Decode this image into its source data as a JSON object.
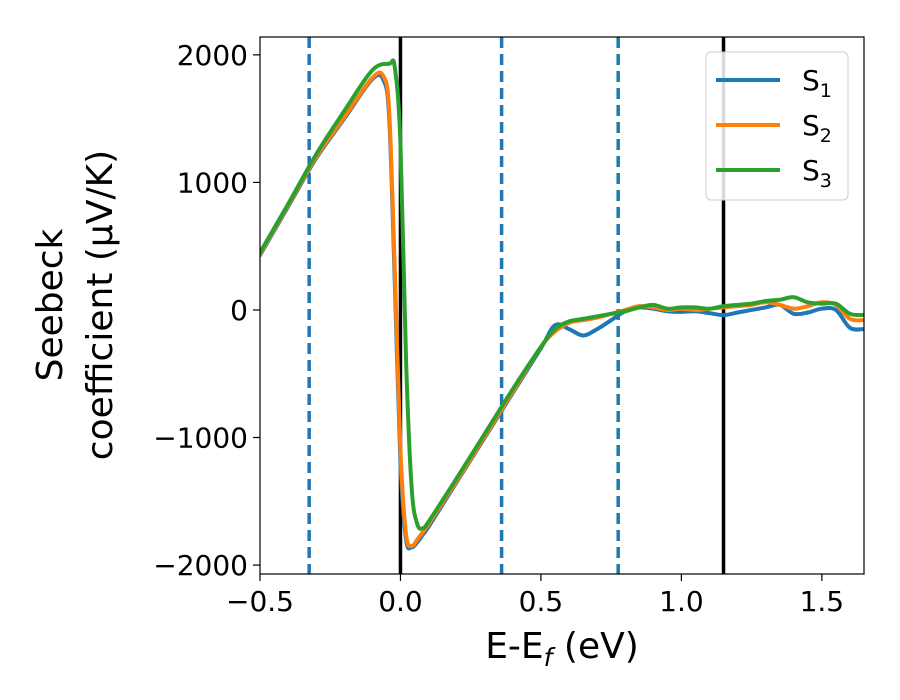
{
  "chart_data": {
    "type": "line",
    "title": "",
    "xlabel_main": "E-E",
    "xlabel_sub": "f",
    "xlabel_unit": " (eV)",
    "ylabel_line1": "Seebeck",
    "ylabel_line2": "coefficient  (μV/K)",
    "xlim": [
      -0.5,
      1.65
    ],
    "ylim": [
      -2070,
      2140
    ],
    "xticks": [
      -0.5,
      0.0,
      0.5,
      1.0,
      1.5
    ],
    "xtick_labels": [
      "−0.5",
      "0.0",
      "0.5",
      "1.0",
      "1.5"
    ],
    "yticks": [
      -2000,
      -1000,
      0,
      1000,
      2000
    ],
    "ytick_labels": [
      "−2000",
      "−1000",
      "0",
      "1000",
      "2000"
    ],
    "grid": false,
    "legend_position": "top-right",
    "vlines": [
      {
        "x": -0.325,
        "style": "dashed",
        "color": "#1f77b4"
      },
      {
        "x": 0.0,
        "style": "solid",
        "color": "#000000"
      },
      {
        "x": 0.36,
        "style": "dashed",
        "color": "#1f77b4"
      },
      {
        "x": 0.775,
        "style": "dashed",
        "color": "#1f77b4"
      },
      {
        "x": 1.15,
        "style": "solid",
        "color": "#000000"
      }
    ],
    "series": [
      {
        "name": "S",
        "sub": "1",
        "color": "#1f77b4",
        "x": [
          -0.5,
          -0.4,
          -0.3,
          -0.2,
          -0.1,
          -0.06,
          -0.04,
          -0.02,
          0.0,
          0.02,
          0.04,
          0.06,
          0.08,
          0.1,
          0.2,
          0.3,
          0.4,
          0.5,
          0.55,
          0.6,
          0.65,
          0.7,
          0.75,
          0.8,
          0.85,
          0.9,
          0.95,
          1.0,
          1.05,
          1.1,
          1.15,
          1.2,
          1.25,
          1.3,
          1.35,
          1.4,
          1.45,
          1.5,
          1.55,
          1.6,
          1.65
        ],
        "y": [
          430,
          810,
          1190,
          1500,
          1810,
          1800,
          1500,
          200,
          -1200,
          -1800,
          -1860,
          -1820,
          -1760,
          -1700,
          -1350,
          -1000,
          -650,
          -300,
          -120,
          -150,
          -200,
          -150,
          -80,
          -10,
          20,
          10,
          -10,
          -15,
          -10,
          -25,
          -40,
          -20,
          0,
          20,
          40,
          -30,
          -20,
          10,
          0,
          -140,
          -150
        ]
      },
      {
        "name": "S",
        "sub": "2",
        "color": "#ff7f0e",
        "x": [
          -0.5,
          -0.4,
          -0.3,
          -0.2,
          -0.1,
          -0.06,
          -0.04,
          -0.02,
          0.0,
          0.02,
          0.04,
          0.06,
          0.08,
          0.1,
          0.2,
          0.3,
          0.4,
          0.5,
          0.55,
          0.6,
          0.65,
          0.7,
          0.75,
          0.8,
          0.85,
          0.9,
          0.95,
          1.0,
          1.05,
          1.1,
          1.15,
          1.2,
          1.25,
          1.3,
          1.35,
          1.4,
          1.45,
          1.5,
          1.55,
          1.6,
          1.65
        ],
        "y": [
          440,
          820,
          1200,
          1510,
          1820,
          1830,
          1550,
          300,
          -1100,
          -1760,
          -1850,
          -1800,
          -1740,
          -1680,
          -1340,
          -990,
          -640,
          -290,
          -170,
          -100,
          -80,
          -60,
          -30,
          0,
          30,
          20,
          0,
          10,
          0,
          10,
          20,
          30,
          40,
          60,
          40,
          10,
          30,
          60,
          40,
          -70,
          -80
        ]
      },
      {
        "name": "S",
        "sub": "3",
        "color": "#2ca02c",
        "x": [
          -0.5,
          -0.4,
          -0.3,
          -0.2,
          -0.1,
          -0.04,
          -0.02,
          0.0,
          0.02,
          0.04,
          0.06,
          0.08,
          0.1,
          0.2,
          0.3,
          0.4,
          0.5,
          0.55,
          0.6,
          0.65,
          0.7,
          0.75,
          0.8,
          0.85,
          0.9,
          0.95,
          1.0,
          1.05,
          1.1,
          1.15,
          1.2,
          1.25,
          1.3,
          1.35,
          1.4,
          1.45,
          1.5,
          1.55,
          1.6,
          1.65
        ],
        "y": [
          450,
          830,
          1220,
          1560,
          1880,
          1930,
          1900,
          1300,
          -400,
          -1400,
          -1680,
          -1710,
          -1660,
          -1320,
          -970,
          -620,
          -290,
          -150,
          -90,
          -70,
          -50,
          -30,
          -10,
          20,
          40,
          10,
          20,
          20,
          10,
          30,
          40,
          50,
          70,
          80,
          100,
          60,
          50,
          50,
          -30,
          -40
        ]
      }
    ]
  }
}
